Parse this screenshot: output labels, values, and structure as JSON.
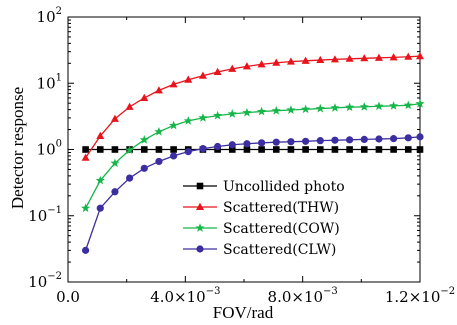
{
  "chart_data": {
    "type": "line",
    "title": "",
    "xlabel": "FOV/rad",
    "ylabel": "Detector response",
    "yscale": "log",
    "xlim": [
      0,
      0.012
    ],
    "ylim": [
      0.01,
      100
    ],
    "grid": false,
    "legend_position": "bottom-right",
    "x_ticks": [
      {
        "value": 0,
        "base": "0.0",
        "exp": ""
      },
      {
        "value": 0.004,
        "base": "4.0×10",
        "exp": "−3"
      },
      {
        "value": 0.008,
        "base": "8.0×10",
        "exp": "−3"
      },
      {
        "value": 0.012,
        "base": "1.2×10",
        "exp": "−2"
      }
    ],
    "y_ticks": [
      {
        "value": 0.01,
        "base": "10",
        "exp": "−2"
      },
      {
        "value": 0.1,
        "base": "10",
        "exp": "−1"
      },
      {
        "value": 1,
        "base": "10",
        "exp": "0"
      },
      {
        "value": 10,
        "base": "10",
        "exp": "1"
      },
      {
        "value": 100,
        "base": "10",
        "exp": "2"
      }
    ],
    "x": [
      0.0006,
      0.0011,
      0.0016,
      0.0021,
      0.0026,
      0.0031,
      0.0036,
      0.0041,
      0.0046,
      0.0051,
      0.0056,
      0.0061,
      0.0066,
      0.0071,
      0.0076,
      0.0081,
      0.0086,
      0.0091,
      0.0096,
      0.0101,
      0.0106,
      0.0111,
      0.0116,
      0.012
    ],
    "series": [
      {
        "name": "Uncollided photo",
        "color": "#000000",
        "marker": "square",
        "values": [
          1,
          1,
          1,
          1,
          1,
          1,
          1,
          1,
          1,
          1,
          1,
          1,
          1,
          1,
          1,
          1,
          1,
          1,
          1,
          1,
          1,
          1,
          1,
          1
        ]
      },
      {
        "name": "Scattered(THW)",
        "color": "#e8141c",
        "marker": "triangle",
        "values": [
          0.75,
          1.6,
          2.9,
          4.4,
          6.0,
          7.8,
          9.6,
          11.3,
          13.0,
          14.8,
          16.5,
          18.0,
          19.3,
          20.4,
          21.2,
          21.8,
          22.4,
          22.9,
          23.4,
          23.8,
          24.2,
          24.6,
          25.1,
          25.6
        ]
      },
      {
        "name": "Scattered(COW)",
        "color": "#17b64a",
        "marker": "star",
        "values": [
          0.13,
          0.34,
          0.62,
          0.98,
          1.4,
          1.85,
          2.3,
          2.7,
          3.0,
          3.25,
          3.45,
          3.6,
          3.75,
          3.85,
          3.95,
          4.05,
          4.15,
          4.25,
          4.35,
          4.4,
          4.5,
          4.55,
          4.65,
          4.9
        ]
      },
      {
        "name": "Scattered(CLW)",
        "color": "#3b2ea0",
        "marker": "circle",
        "values": [
          0.03,
          0.13,
          0.23,
          0.37,
          0.52,
          0.66,
          0.8,
          0.93,
          1.03,
          1.11,
          1.18,
          1.22,
          1.26,
          1.29,
          1.31,
          1.33,
          1.36,
          1.38,
          1.4,
          1.42,
          1.44,
          1.46,
          1.5,
          1.55
        ]
      }
    ]
  }
}
